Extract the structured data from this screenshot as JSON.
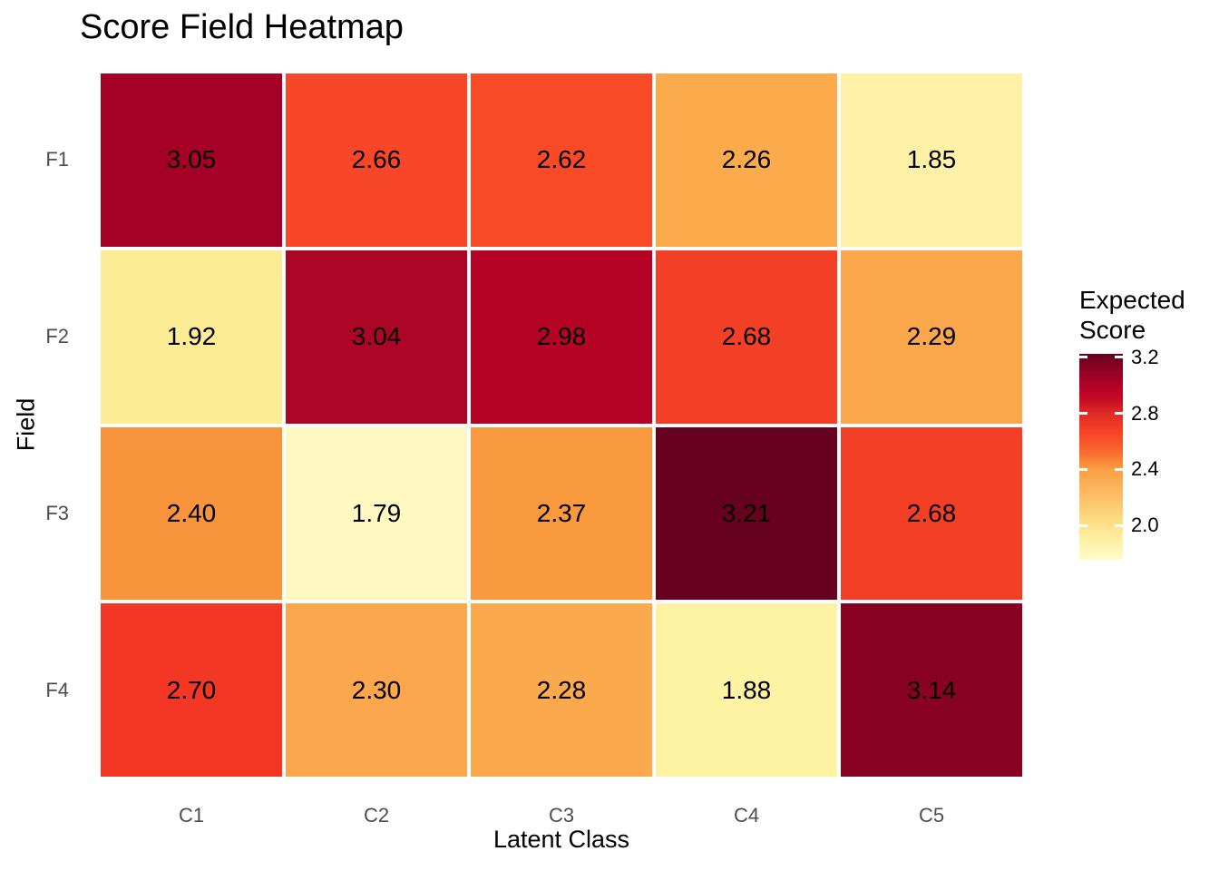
{
  "chart_data": {
    "type": "heatmap",
    "title": "Score Field Heatmap",
    "xlabel": "Latent Class",
    "ylabel": "Field",
    "x_categories": [
      "C1",
      "C2",
      "C3",
      "C4",
      "C5"
    ],
    "y_categories": [
      "F1",
      "F2",
      "F3",
      "F4"
    ],
    "values": [
      [
        3.05,
        2.66,
        2.62,
        2.26,
        1.85
      ],
      [
        1.92,
        3.04,
        2.98,
        2.68,
        2.29
      ],
      [
        2.4,
        1.79,
        2.37,
        3.21,
        2.68
      ],
      [
        2.7,
        2.3,
        2.28,
        1.88,
        3.14
      ]
    ],
    "value_labels": [
      [
        "3.05",
        "2.66",
        "2.62",
        "2.26",
        "1.85"
      ],
      [
        "1.92",
        "3.04",
        "2.98",
        "2.68",
        "2.29"
      ],
      [
        "2.40",
        "1.79",
        "2.37",
        "3.21",
        "2.68"
      ],
      [
        "2.70",
        "2.30",
        "2.28",
        "1.88",
        "3.14"
      ]
    ],
    "cell_colors": [
      [
        "#A50126",
        "#F84628",
        "#F94A28",
        "#FBAB4B",
        "#FEF1A7"
      ],
      [
        "#FCEC96",
        "#AB0626",
        "#B50326",
        "#F43F27",
        "#FBA84D"
      ],
      [
        "#F8953C",
        "#FFF8C1",
        "#F99A3E",
        "#670120",
        "#F43F27"
      ],
      [
        "#F23724",
        "#FAA74E",
        "#FAAA4C",
        "#FEF2A3",
        "#870223"
      ]
    ],
    "value_range": [
      1.79,
      3.21
    ],
    "grid": "off",
    "legend": {
      "position": "right",
      "title": "Expected\nScore",
      "tick_labels": [
        "3.2",
        "2.8",
        "2.4",
        "2.0"
      ],
      "tick_values": [
        3.2,
        2.8,
        2.4,
        2.0
      ],
      "domain": [
        1.755,
        3.225
      ],
      "gradient_stops": [
        {
          "pos": 0,
          "color": "#FFFCCB"
        },
        {
          "pos": 8,
          "color": "#FEF2A9"
        },
        {
          "pos": 17,
          "color": "#FDE18C"
        },
        {
          "pos": 30,
          "color": "#FCC167"
        },
        {
          "pos": 44,
          "color": "#F99E42"
        },
        {
          "pos": 51,
          "color": "#F97231"
        },
        {
          "pos": 58,
          "color": "#F85129"
        },
        {
          "pos": 64,
          "color": "#F23C25"
        },
        {
          "pos": 71,
          "color": "#E02A25"
        },
        {
          "pos": 78,
          "color": "#C60B26"
        },
        {
          "pos": 85,
          "color": "#B00226"
        },
        {
          "pos": 88,
          "color": "#A00125"
        },
        {
          "pos": 94,
          "color": "#870223"
        },
        {
          "pos": 100,
          "color": "#650120"
        }
      ]
    },
    "colors": {
      "background": "#FFFFFF",
      "tile_border": "#FFFFFF",
      "axis_text": "#4D4D4D",
      "text": "#000000",
      "scale_min": "#FFFCCB",
      "scale_max": "#650120"
    }
  }
}
